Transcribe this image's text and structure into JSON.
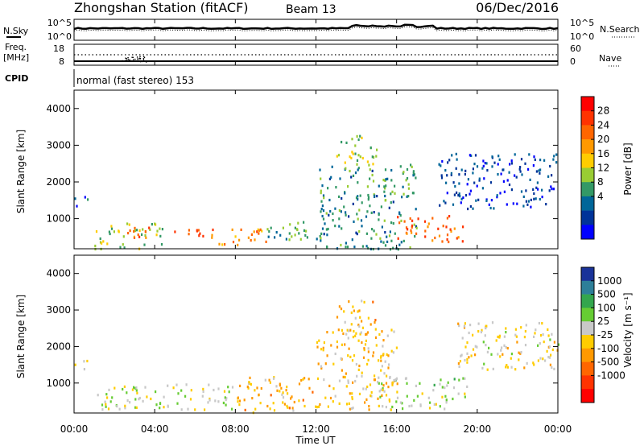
{
  "header": {
    "title": "Zhongshan Station (fitACF)",
    "beam": "Beam 13",
    "date": "06/Dec/2016"
  },
  "labels": {
    "nsky": "N.Sky",
    "nsearch": "N.Search",
    "freq": "Freq.",
    "freq_unit": "[MHz]",
    "nave": "Nave",
    "cpid": "CPID",
    "cpid_text": "normal (fast stereo) 153",
    "ylabel": "Slant Range [km]",
    "xlabel": "Time UT",
    "power_label": "Power [dB]",
    "velocity_label": "Velocity [m s⁻¹]"
  },
  "noise_axis": {
    "left_ticks": [
      "10^5",
      "10^0"
    ],
    "right_ticks": [
      "10^5",
      "10^0"
    ]
  },
  "freq_axis": {
    "left_ticks": [
      "18",
      "8"
    ],
    "right_ticks": [
      "60",
      "0"
    ]
  },
  "time_ticks": [
    "00:00",
    "04:00",
    "08:00",
    "12:00",
    "16:00",
    "20:00",
    "00:00"
  ],
  "range_ticks": [
    "4000",
    "3000",
    "2000",
    "1000"
  ],
  "power_scale": {
    "ticks": [
      "28",
      "24",
      "20",
      "16",
      "12",
      "8",
      "4"
    ],
    "colors": [
      "#ff0000",
      "#ff3300",
      "#ff6600",
      "#ff9900",
      "#ffcc00",
      "#99cc33",
      "#339966",
      "#006699",
      "#003399",
      "#0000ff"
    ]
  },
  "velocity_scale": {
    "ticks": [
      "1000",
      "500",
      "100",
      "25",
      "-25",
      "-100",
      "-500",
      "-1000"
    ],
    "colors": [
      "#1a3399",
      "#2d7f99",
      "#33a64d",
      "#66cc33",
      "#c8c8c8",
      "#ffcc00",
      "#ff9900",
      "#ff6600",
      "#ff3300",
      "#ff0000"
    ]
  },
  "chart_data": [
    {
      "type": "heatmap",
      "title": "Power",
      "x_range_hours": [
        0,
        24
      ],
      "y_range_km": [
        180,
        4500
      ],
      "regions": [
        {
          "t0": 0.0,
          "t1": 0.7,
          "r0": 1350,
          "r1": 1650,
          "value": 6
        },
        {
          "t0": 1.0,
          "t1": 4.5,
          "r0": 200,
          "r1": 900,
          "value": 14
        },
        {
          "t0": 2.5,
          "t1": 7.0,
          "r0": 500,
          "r1": 800,
          "value": 24
        },
        {
          "t0": 7.0,
          "t1": 9.5,
          "r0": 300,
          "r1": 800,
          "value": 22
        },
        {
          "t0": 9.5,
          "t1": 12.0,
          "r0": 400,
          "r1": 1000,
          "value": 12
        },
        {
          "t0": 12.0,
          "t1": 17.0,
          "r0": 200,
          "r1": 2500,
          "value": 10
        },
        {
          "t0": 13.0,
          "t1": 15.0,
          "r0": 2300,
          "r1": 3300,
          "value": 14
        },
        {
          "t0": 16.0,
          "t1": 19.5,
          "r0": 400,
          "r1": 1100,
          "value": 24
        },
        {
          "t0": 18.0,
          "t1": 24.0,
          "r0": 1300,
          "r1": 2800,
          "value": 5
        }
      ]
    },
    {
      "type": "heatmap",
      "title": "Velocity",
      "x_range_hours": [
        0,
        24
      ],
      "y_range_km": [
        180,
        4500
      ],
      "regions": [
        {
          "t0": 0.0,
          "t1": 0.7,
          "r0": 1350,
          "r1": 1650,
          "value": 0
        },
        {
          "t0": 1.0,
          "t1": 8.0,
          "r0": 300,
          "r1": 1000,
          "value": 120
        },
        {
          "t0": 8.0,
          "t1": 12.0,
          "r0": 200,
          "r1": 1200,
          "value": -200
        },
        {
          "t0": 12.0,
          "t1": 16.0,
          "r0": 300,
          "r1": 2500,
          "value": -150
        },
        {
          "t0": 13.0,
          "t1": 15.0,
          "r0": 2300,
          "r1": 3300,
          "value": -200
        },
        {
          "t0": 15.0,
          "t1": 19.5,
          "r0": 300,
          "r1": 1200,
          "value": 200
        },
        {
          "t0": 19.0,
          "t1": 24.0,
          "r0": 1400,
          "r1": 2700,
          "value": 0
        },
        {
          "t0": 23.0,
          "t1": 24.0,
          "r0": 1800,
          "r1": 2200,
          "value": -200
        }
      ]
    }
  ]
}
